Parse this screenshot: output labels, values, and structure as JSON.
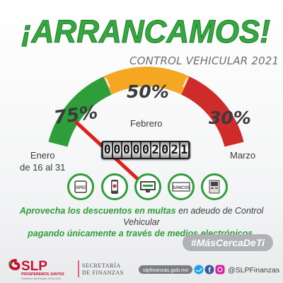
{
  "headline": "¡ARRANCAMOS!",
  "subtitle": "CONTROL VEHICULAR 2021",
  "gauge": {
    "segments": [
      {
        "month_line1": "Enero",
        "month_line2": "de 16 al 31",
        "discount": "75%",
        "color": "#2f9e3a"
      },
      {
        "month_line1": "Febrero",
        "discount": "50%",
        "color": "#f5a623"
      },
      {
        "month_line1": "Marzo",
        "discount": "30%",
        "color": "#cf2b2b"
      }
    ],
    "odometer_digits": [
      "0",
      "0",
      "0",
      "0",
      "0",
      "2",
      "0",
      "2",
      "1"
    ],
    "needle_color": "#e0201c"
  },
  "icons": [
    {
      "name": "spei-icon",
      "label": "SPEI"
    },
    {
      "name": "mobile-app-icon",
      "label": ""
    },
    {
      "name": "online-banking-icon",
      "label": ""
    },
    {
      "name": "banks-icon",
      "label": "BANCOS"
    },
    {
      "name": "kiosk-icon",
      "label": ""
    }
  ],
  "message": {
    "part1": "Aprovecha los descuentos en multas",
    "part2": " en adeudo de Control Vehicular",
    "part3": "pagando únicamente a través de medios electrónicos."
  },
  "hashtag": "#MásCercaDeTi",
  "footer": {
    "logo_text": "SLP",
    "logo_tagline": "PROSPEREMOS JUNTOS",
    "logo_subtagline": "Gobierno del Estado 2015-2021",
    "secretaria_line1": "SECRETARÍA",
    "secretaria_line2": "DE FINANZAS",
    "website": "slpfinanzas.gob.mx",
    "social_handle": "@SLPFinanzas"
  },
  "colors": {
    "green": "#2f9e3a",
    "orange": "#f5a623",
    "red": "#cf2b2b",
    "gray": "#b0b2b5",
    "brand_red": "#c8102e"
  }
}
